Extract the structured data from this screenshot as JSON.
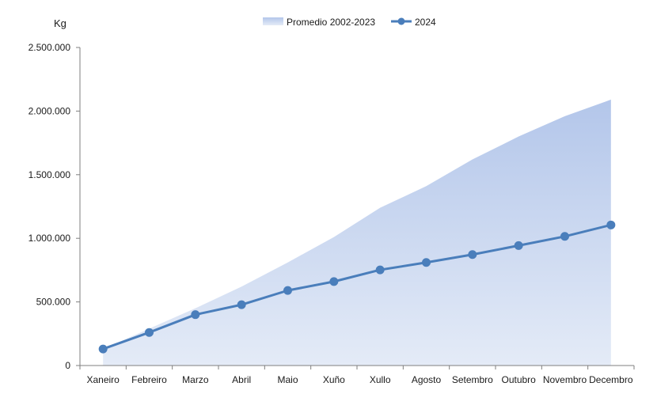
{
  "chart_data": {
    "type": "line",
    "ylabel": "Kg",
    "ylim": [
      0,
      2500000
    ],
    "yticks": [
      0,
      500000,
      1000000,
      1500000,
      2000000,
      2500000
    ],
    "ytick_labels": [
      "0",
      "500.000",
      "1.000.000",
      "1.500.000",
      "2.000.000",
      "2.500.000"
    ],
    "categories": [
      "Xaneiro",
      "Febreiro",
      "Marzo",
      "Abril",
      "Maio",
      "Xuño",
      "Xullo",
      "Agosto",
      "Setembro",
      "Outubro",
      "Novembro",
      "Decembro"
    ],
    "grid": false,
    "legend_position": "top",
    "series": [
      {
        "name": "Promedio 2002-2023",
        "type": "area",
        "color_top": "#b3c6ea",
        "color_bottom": "#e4ebf7",
        "values": [
          130000,
          290000,
          450000,
          620000,
          810000,
          1010000,
          1240000,
          1410000,
          1620000,
          1800000,
          1960000,
          2090000
        ]
      },
      {
        "name": "2024",
        "type": "line",
        "color": "#4a7ebb",
        "values": [
          130000,
          260000,
          400000,
          478000,
          590000,
          660000,
          752000,
          810000,
          872000,
          943000,
          1015000,
          1105000
        ]
      }
    ]
  }
}
